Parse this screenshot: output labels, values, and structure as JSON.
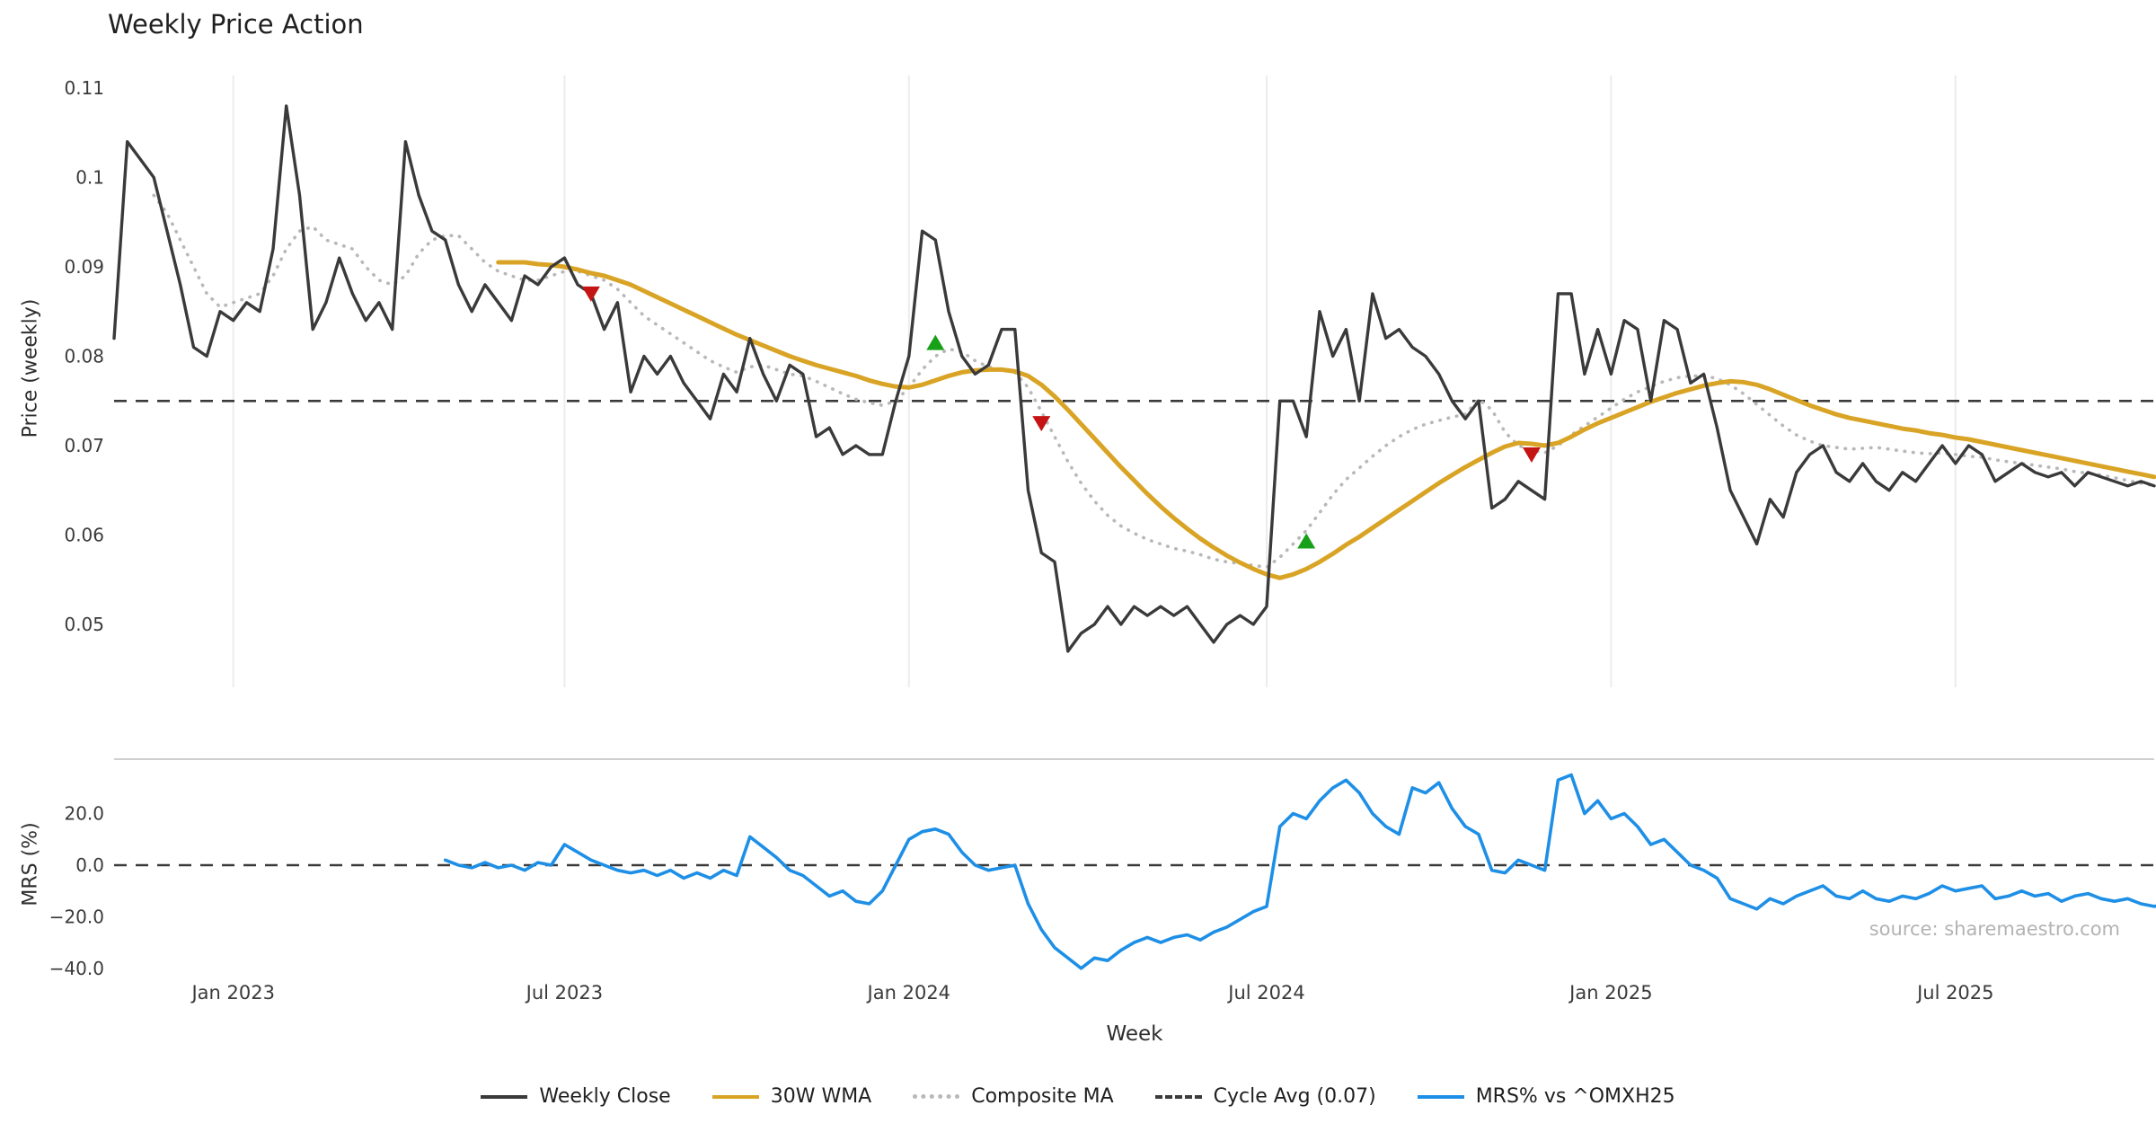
{
  "chart_data": {
    "type": "line",
    "title": "Weekly Price Action",
    "xlabel": "Week",
    "source": "source: sharemaestro.com",
    "x_axis": {
      "tick_labels": [
        "Jan 2023",
        "Jul 2023",
        "Jan 2024",
        "Jul 2024",
        "Jan 2025",
        "Jul 2025"
      ],
      "tick_weeks": [
        9,
        34,
        60,
        87,
        113,
        139
      ],
      "total_weeks": 154
    },
    "signal_colors": {
      "buy": "#18a018",
      "sell": "#c41414"
    },
    "panels": [
      {
        "name": "price",
        "ylabel": "Price (weekly)",
        "ylim": [
          0.044,
          0.112
        ],
        "grid": "vertical",
        "y_ticks": [
          {
            "value": 0.11,
            "label": "0.11"
          },
          {
            "value": 0.1,
            "label": "0.1"
          },
          {
            "value": 0.09,
            "label": "0.09"
          },
          {
            "value": 0.08,
            "label": "0.08"
          },
          {
            "value": 0.07,
            "label": "0.07"
          },
          {
            "value": 0.06,
            "label": "0.06"
          },
          {
            "value": 0.05,
            "label": "0.05"
          }
        ],
        "ref_line": {
          "label": "Cycle Avg (0.07)",
          "value": 0.075,
          "style": "dashed",
          "color": "#3a3a3a"
        },
        "series": [
          {
            "name": "Weekly Close",
            "data_name": "weekly-close-line",
            "color": "#3a3a3a",
            "style": "solid",
            "width": 3.4,
            "start_week": 0,
            "values": [
              0.082,
              0.104,
              0.102,
              0.1,
              0.094,
              0.088,
              0.081,
              0.08,
              0.085,
              0.084,
              0.086,
              0.085,
              0.092,
              0.108,
              0.098,
              0.083,
              0.086,
              0.091,
              0.087,
              0.084,
              0.086,
              0.083,
              0.104,
              0.098,
              0.094,
              0.093,
              0.088,
              0.085,
              0.088,
              0.086,
              0.084,
              0.089,
              0.088,
              0.09,
              0.091,
              0.088,
              0.087,
              0.083,
              0.086,
              0.076,
              0.08,
              0.078,
              0.08,
              0.077,
              0.075,
              0.073,
              0.078,
              0.076,
              0.082,
              0.078,
              0.075,
              0.079,
              0.078,
              0.071,
              0.072,
              0.069,
              0.07,
              0.069,
              0.069,
              0.075,
              0.08,
              0.094,
              0.093,
              0.085,
              0.08,
              0.078,
              0.079,
              0.083,
              0.083,
              0.065,
              0.058,
              0.057,
              0.047,
              0.049,
              0.05,
              0.052,
              0.05,
              0.052,
              0.051,
              0.052,
              0.051,
              0.052,
              0.05,
              0.048,
              0.05,
              0.051,
              0.05,
              0.052,
              0.075,
              0.075,
              0.071,
              0.085,
              0.08,
              0.083,
              0.075,
              0.087,
              0.082,
              0.083,
              0.081,
              0.08,
              0.078,
              0.075,
              0.073,
              0.075,
              0.063,
              0.064,
              0.066,
              0.065,
              0.064,
              0.087,
              0.087,
              0.078,
              0.083,
              0.078,
              0.084,
              0.083,
              0.075,
              0.084,
              0.083,
              0.077,
              0.078,
              0.072,
              0.065,
              0.062,
              0.059,
              0.064,
              0.062,
              0.067,
              0.069,
              0.07,
              0.067,
              0.066,
              0.068,
              0.066,
              0.065,
              0.067,
              0.066,
              0.068,
              0.07,
              0.068,
              0.07,
              0.069,
              0.066,
              0.067,
              0.068,
              0.067,
              0.0665,
              0.067,
              0.0655,
              0.067,
              0.0665,
              0.066,
              0.0655,
              0.066,
              0.0655
            ]
          },
          {
            "name": "30W WMA",
            "data_name": "wma-line",
            "color": "#d9a425",
            "style": "solid",
            "width": 5,
            "start_week": 29,
            "values": [
              0.0905,
              0.0905,
              0.0905,
              0.0903,
              0.0902,
              0.09,
              0.0897,
              0.0893,
              0.089,
              0.0885,
              0.088,
              0.0873,
              0.0866,
              0.0859,
              0.0852,
              0.0845,
              0.0838,
              0.0831,
              0.0824,
              0.0818,
              0.0812,
              0.0806,
              0.08,
              0.0795,
              0.079,
              0.0786,
              0.0782,
              0.0778,
              0.0773,
              0.0769,
              0.0766,
              0.0765,
              0.0768,
              0.0773,
              0.0778,
              0.0782,
              0.0784,
              0.0785,
              0.0785,
              0.0783,
              0.0778,
              0.0768,
              0.0755,
              0.074,
              0.0724,
              0.0708,
              0.0692,
              0.0676,
              0.0661,
              0.0646,
              0.0632,
              0.0619,
              0.0607,
              0.0596,
              0.0586,
              0.0577,
              0.0569,
              0.0562,
              0.0556,
              0.0552,
              0.0556,
              0.0562,
              0.057,
              0.0579,
              0.0589,
              0.0598,
              0.0608,
              0.0618,
              0.0628,
              0.0638,
              0.0648,
              0.0658,
              0.0667,
              0.0676,
              0.0684,
              0.0692,
              0.0699,
              0.0703,
              0.0702,
              0.07,
              0.0703,
              0.071,
              0.0718,
              0.0725,
              0.0731,
              0.0737,
              0.0743,
              0.0749,
              0.0754,
              0.0759,
              0.0763,
              0.0767,
              0.077,
              0.0772,
              0.0771,
              0.0768,
              0.0763,
              0.0757,
              0.0751,
              0.0745,
              0.074,
              0.0735,
              0.0731,
              0.0728,
              0.0725,
              0.0722,
              0.0719,
              0.0717,
              0.0714,
              0.0712,
              0.0709,
              0.0707,
              0.0704,
              0.0701,
              0.0698,
              0.0695,
              0.0692,
              0.0689,
              0.0686,
              0.0683,
              0.068,
              0.0677,
              0.0674,
              0.0671,
              0.0668,
              0.0665
            ]
          },
          {
            "name": "Composite MA",
            "data_name": "composite-ma-line",
            "color": "#b8b8b8",
            "style": "dotted",
            "width": 3.6,
            "start_week": 3,
            "values": [
              0.098,
              0.096,
              0.093,
              0.09,
              0.087,
              0.0855,
              0.086,
              0.0865,
              0.087,
              0.089,
              0.092,
              0.094,
              0.0945,
              0.093,
              0.0925,
              0.092,
              0.09,
              0.0885,
              0.088,
              0.089,
              0.0915,
              0.093,
              0.0935,
              0.0935,
              0.092,
              0.0905,
              0.0895,
              0.089,
              0.0885,
              0.0885,
              0.089,
              0.0895,
              0.0895,
              0.089,
              0.0885,
              0.0875,
              0.086,
              0.0845,
              0.0835,
              0.0825,
              0.0815,
              0.0805,
              0.0795,
              0.0788,
              0.0782,
              0.0788,
              0.079,
              0.0785,
              0.078,
              0.0778,
              0.0772,
              0.0765,
              0.0758,
              0.0752,
              0.0748,
              0.0745,
              0.075,
              0.0765,
              0.0785,
              0.08,
              0.0808,
              0.0805,
              0.0795,
              0.0788,
              0.0785,
              0.0782,
              0.0765,
              0.0738,
              0.071,
              0.0682,
              0.0658,
              0.0638,
              0.0622,
              0.061,
              0.0602,
              0.0595,
              0.059,
              0.0585,
              0.0582,
              0.0578,
              0.0573,
              0.057,
              0.0568,
              0.0566,
              0.0564,
              0.0575,
              0.059,
              0.0605,
              0.0625,
              0.0645,
              0.0662,
              0.0675,
              0.0688,
              0.07,
              0.071,
              0.0718,
              0.0724,
              0.0728,
              0.0732,
              0.0735,
              0.0752,
              0.074,
              0.0715,
              0.07,
              0.0695,
              0.0692,
              0.07,
              0.0712,
              0.0722,
              0.0732,
              0.0742,
              0.0752,
              0.076,
              0.0766,
              0.0772,
              0.0776,
              0.0778,
              0.0778,
              0.0775,
              0.0768,
              0.0758,
              0.0746,
              0.0734,
              0.0722,
              0.0712,
              0.0705,
              0.07,
              0.0698,
              0.0696,
              0.0697,
              0.0698,
              0.0696,
              0.0694,
              0.0692,
              0.0691,
              0.0692,
              0.069,
              0.0688,
              0.0687,
              0.0684,
              0.0682,
              0.068,
              0.0678,
              0.0676,
              0.0674,
              0.0671,
              0.0669,
              0.0667,
              0.0664,
              0.0661,
              0.0658,
              0.0655
            ]
          }
        ],
        "signals": [
          {
            "type": "sell",
            "week": 36,
            "price": 0.087
          },
          {
            "type": "buy",
            "week": 62,
            "price": 0.0815
          },
          {
            "type": "sell",
            "week": 70,
            "price": 0.0725
          },
          {
            "type": "buy",
            "week": 90,
            "price": 0.0593
          },
          {
            "type": "sell",
            "week": 107,
            "price": 0.069
          }
        ]
      },
      {
        "name": "mrs",
        "ylabel": "MRS (%)",
        "ylim": [
          -45,
          42
        ],
        "y_ticks": [
          {
            "value": 20,
            "label": "20.0"
          },
          {
            "value": 0,
            "label": "0.0"
          },
          {
            "value": -20,
            "label": "−20.0"
          },
          {
            "value": -40,
            "label": "−40.0"
          }
        ],
        "ref_line": {
          "label": "zero",
          "value": 0,
          "style": "dashed",
          "color": "#3a3a3a"
        },
        "series": [
          {
            "name": "MRS% vs ^OMXH25",
            "data_name": "mrs-line",
            "color": "#1e8fe6",
            "style": "solid",
            "width": 3.6,
            "start_week": 25,
            "values": [
              2,
              0,
              -1,
              1,
              -1,
              0,
              -2,
              1,
              0,
              8,
              5,
              2,
              0,
              -2,
              -3,
              -2,
              -4,
              -2,
              -5,
              -3,
              -5,
              -2,
              -4,
              11,
              7,
              3,
              -2,
              -4,
              -8,
              -12,
              -10,
              -14,
              -15,
              -10,
              0,
              10,
              13,
              14,
              12,
              5,
              0,
              -2,
              -1,
              0,
              -15,
              -25,
              -32,
              -36,
              -40,
              -36,
              -37,
              -33,
              -30,
              -28,
              -30,
              -28,
              -27,
              -29,
              -26,
              -24,
              -21,
              -18,
              -16,
              15,
              20,
              18,
              25,
              30,
              33,
              28,
              20,
              15,
              12,
              30,
              28,
              32,
              22,
              15,
              12,
              -2,
              -3,
              2,
              0,
              -2,
              33,
              35,
              20,
              25,
              18,
              20,
              15,
              8,
              10,
              5,
              0,
              -2,
              -5,
              -13,
              -15,
              -17,
              -13,
              -15,
              -12,
              -10,
              -8,
              -12,
              -13,
              -10,
              -13,
              -14,
              -12,
              -13,
              -11,
              -8,
              -10,
              -9,
              -8,
              -13,
              -12,
              -10,
              -12,
              -11,
              -14,
              -12,
              -11,
              -13,
              -14,
              -13,
              -15,
              -16,
              -15
            ]
          }
        ]
      }
    ],
    "legend": {
      "items": [
        {
          "label": "Weekly Close",
          "color": "#3a3a3a",
          "style": "solid"
        },
        {
          "label": "30W WMA",
          "color": "#d9a425",
          "style": "solid"
        },
        {
          "label": "Composite MA",
          "color": "#b8b8b8",
          "style": "dotted"
        },
        {
          "label": "Cycle Avg (0.07)",
          "color": "#3a3a3a",
          "style": "dashed"
        },
        {
          "label": "MRS% vs ^OMXH25",
          "color": "#1e8fe6",
          "style": "solid"
        }
      ]
    }
  }
}
